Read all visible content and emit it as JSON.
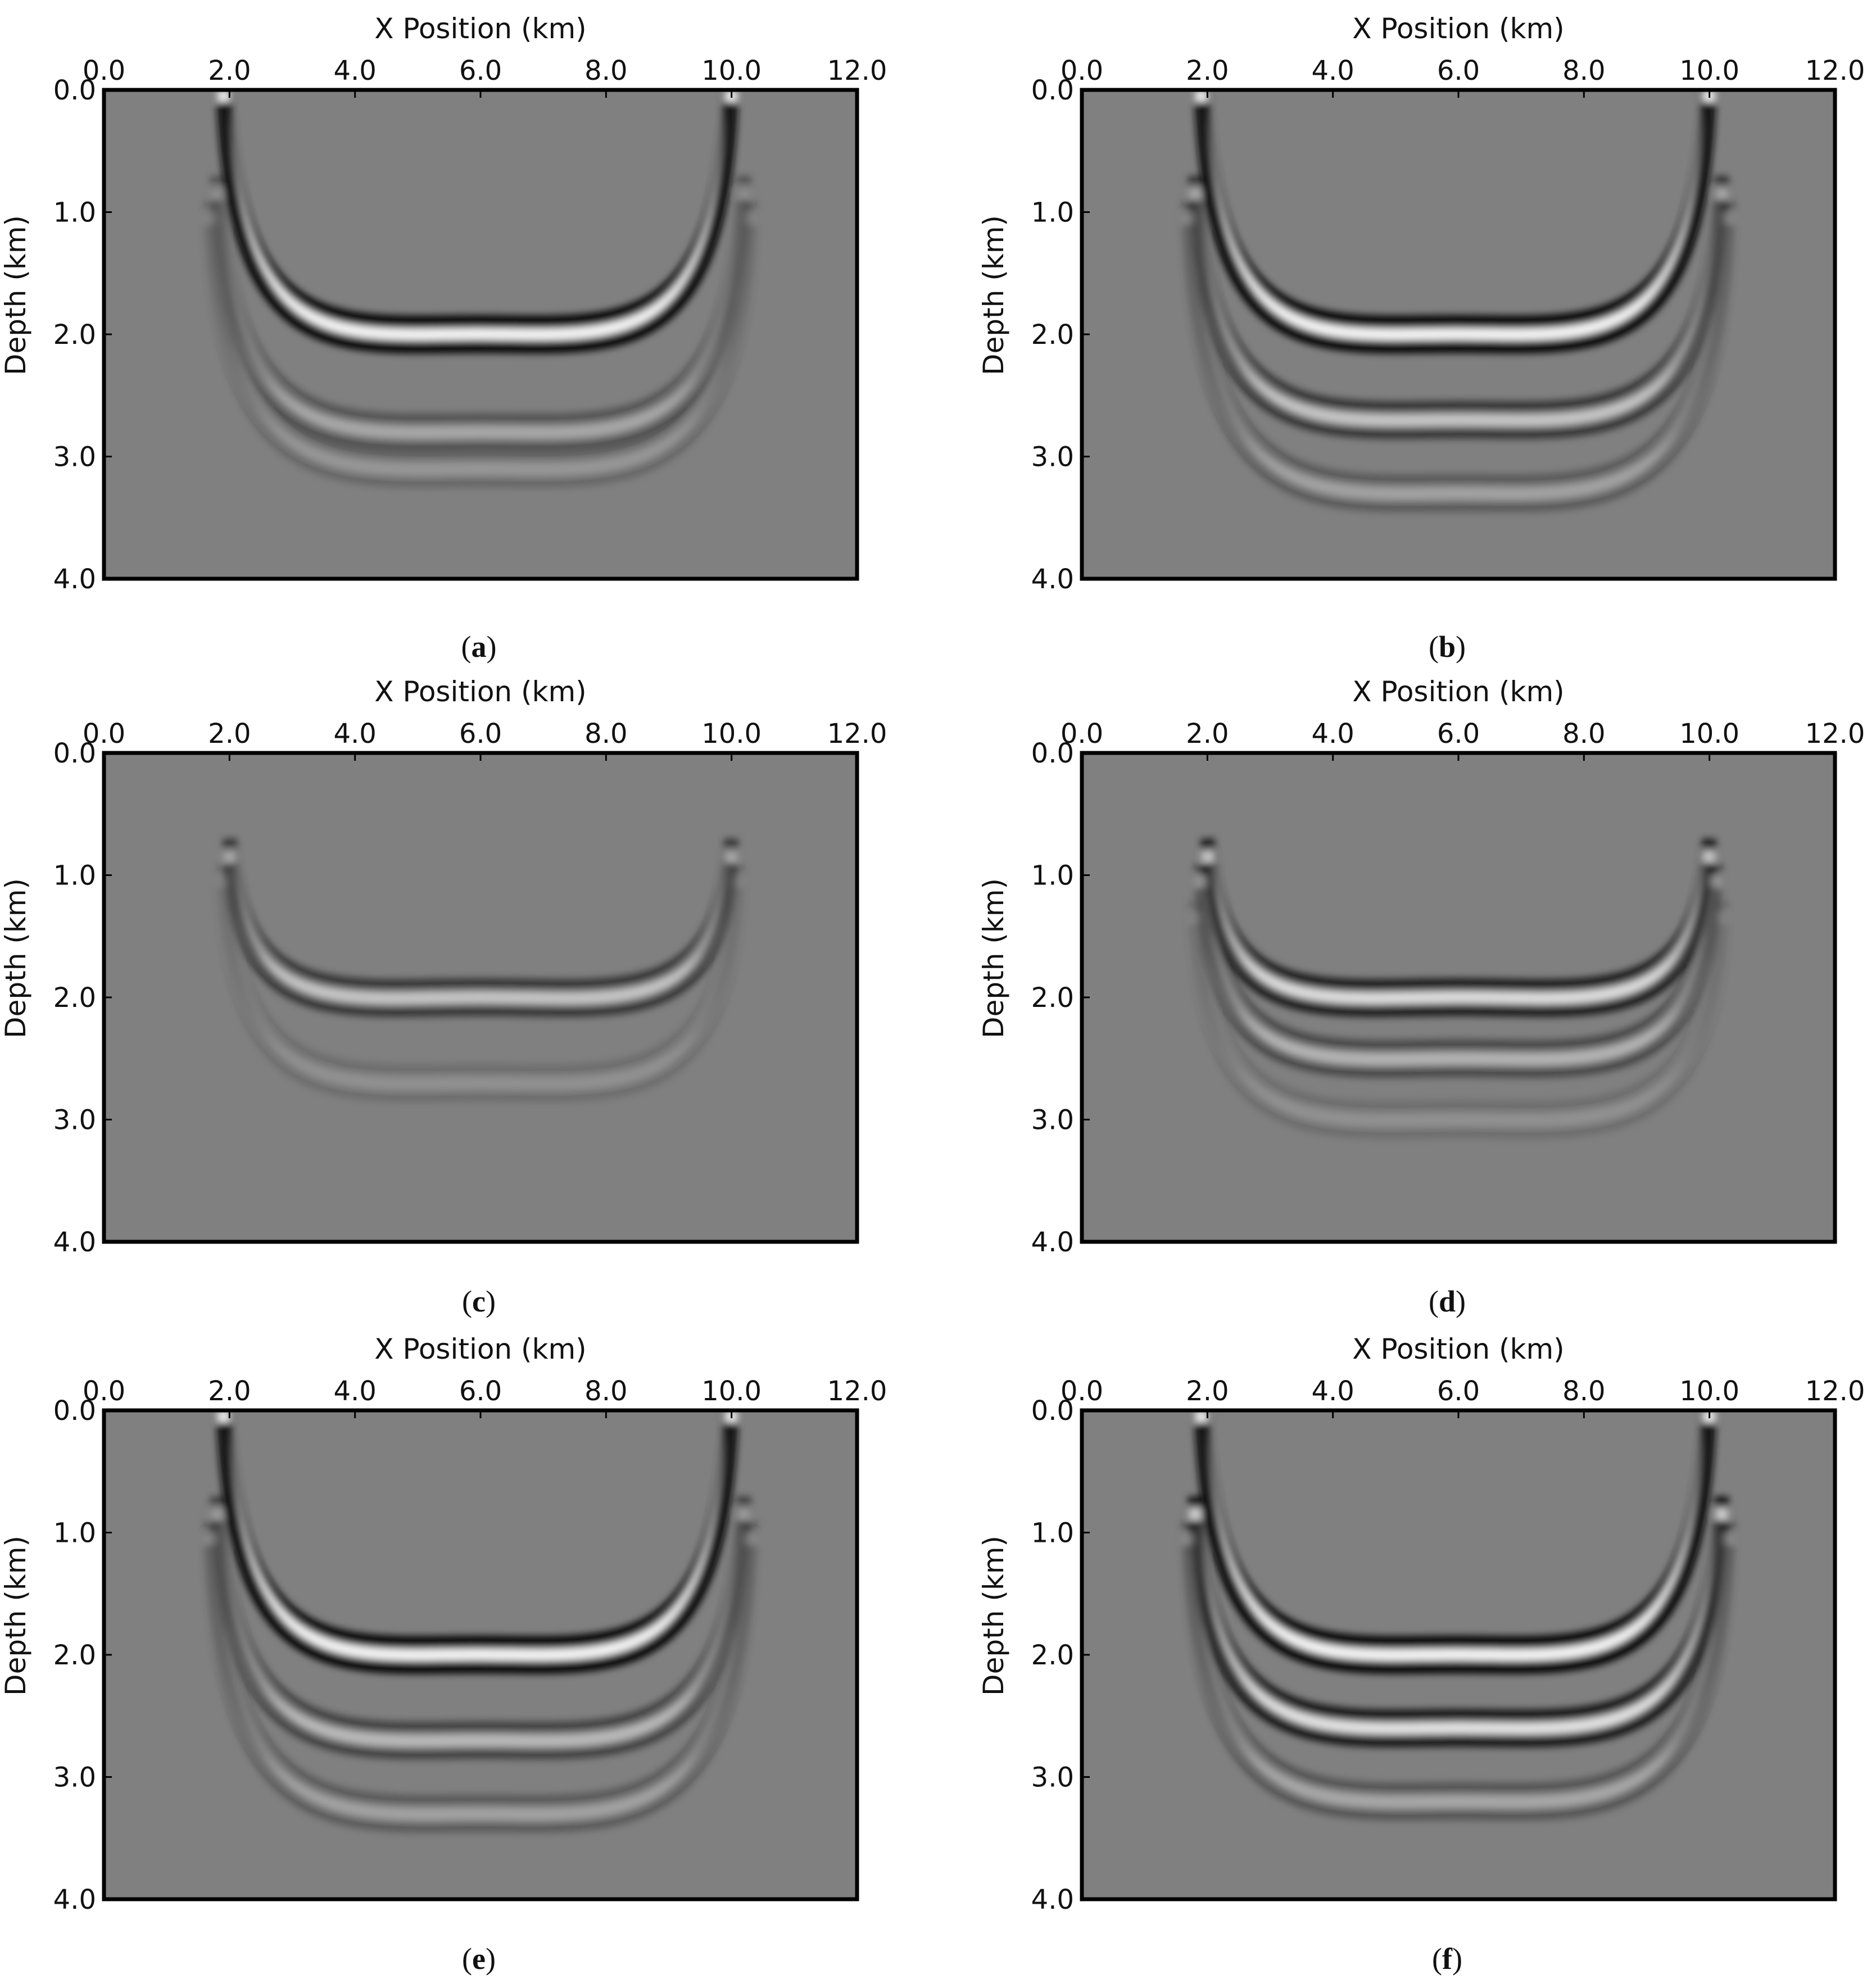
{
  "figure": {
    "background": "#ffffff",
    "field_gray": "#808080"
  },
  "chart_data": [
    {
      "type": "heatmap",
      "panel_label": "a",
      "xlabel": "X Position (km)",
      "ylabel": "Depth (km)",
      "xlim": [
        0.0,
        12.0
      ],
      "ylim": [
        4.0,
        0.0
      ],
      "x_ticks": [
        "0.0",
        "2.0",
        "4.0",
        "6.0",
        "8.0",
        "10.0",
        "12.0"
      ],
      "y_ticks": [
        "0.0",
        "1.0",
        "2.0",
        "3.0",
        "4.0"
      ],
      "colormap": "gray",
      "wavefronts": [
        {
          "x_left": 1.9,
          "x_right": 10.0,
          "bottom_depth": 2.0,
          "top_depth": 0.0,
          "strength": 1.0
        },
        {
          "x_left": 1.8,
          "x_right": 10.2,
          "bottom_depth": 2.8,
          "top_depth": 0.8,
          "strength": 0.35
        },
        {
          "x_left": 1.7,
          "x_right": 10.3,
          "bottom_depth": 3.1,
          "top_depth": 1.0,
          "strength": 0.2
        }
      ]
    },
    {
      "type": "heatmap",
      "panel_label": "b",
      "xlabel": "X Position (km)",
      "ylabel": "Depth (km)",
      "xlim": [
        0.0,
        12.0
      ],
      "ylim": [
        4.0,
        0.0
      ],
      "x_ticks": [
        "0.0",
        "2.0",
        "4.0",
        "6.0",
        "8.0",
        "10.0",
        "12.0"
      ],
      "y_ticks": [
        "0.0",
        "1.0",
        "2.0",
        "3.0",
        "4.0"
      ],
      "colormap": "gray",
      "wavefronts": [
        {
          "x_left": 1.9,
          "x_right": 10.0,
          "bottom_depth": 2.0,
          "top_depth": 0.0,
          "strength": 1.0
        },
        {
          "x_left": 1.8,
          "x_right": 10.2,
          "bottom_depth": 2.7,
          "top_depth": 0.8,
          "strength": 0.6
        },
        {
          "x_left": 1.7,
          "x_right": 10.3,
          "bottom_depth": 3.3,
          "top_depth": 1.0,
          "strength": 0.3
        }
      ]
    },
    {
      "type": "heatmap",
      "panel_label": "c",
      "xlabel": "X Position (km)",
      "ylabel": "Depth (km)",
      "xlim": [
        0.0,
        12.0
      ],
      "ylim": [
        4.0,
        0.0
      ],
      "x_ticks": [
        "0.0",
        "2.0",
        "4.0",
        "6.0",
        "8.0",
        "10.0",
        "12.0"
      ],
      "y_ticks": [
        "0.0",
        "1.0",
        "2.0",
        "3.0",
        "4.0"
      ],
      "colormap": "gray",
      "wavefronts": [
        {
          "x_left": 2.0,
          "x_right": 10.0,
          "bottom_depth": 2.0,
          "top_depth": 0.8,
          "strength": 0.6
        },
        {
          "x_left": 1.9,
          "x_right": 10.1,
          "bottom_depth": 2.7,
          "top_depth": 1.0,
          "strength": 0.15
        }
      ]
    },
    {
      "type": "heatmap",
      "panel_label": "d",
      "xlabel": "X Position (km)",
      "ylabel": "Depth (km)",
      "xlim": [
        0.0,
        12.0
      ],
      "ylim": [
        4.0,
        0.0
      ],
      "x_ticks": [
        "0.0",
        "2.0",
        "4.0",
        "6.0",
        "8.0",
        "10.0",
        "12.0"
      ],
      "y_ticks": [
        "0.0",
        "1.0",
        "2.0",
        "3.0",
        "4.0"
      ],
      "colormap": "gray",
      "wavefronts": [
        {
          "x_left": 2.0,
          "x_right": 10.0,
          "bottom_depth": 2.0,
          "top_depth": 0.8,
          "strength": 0.8
        },
        {
          "x_left": 1.9,
          "x_right": 10.1,
          "bottom_depth": 2.5,
          "top_depth": 1.0,
          "strength": 0.45
        },
        {
          "x_left": 1.8,
          "x_right": 10.2,
          "bottom_depth": 3.0,
          "top_depth": 1.3,
          "strength": 0.15
        }
      ]
    },
    {
      "type": "heatmap",
      "panel_label": "e",
      "xlabel": "X Position (km)",
      "ylabel": "Depth (km)",
      "xlim": [
        0.0,
        12.0
      ],
      "ylim": [
        4.0,
        0.0
      ],
      "x_ticks": [
        "0.0",
        "2.0",
        "4.0",
        "6.0",
        "8.0",
        "10.0",
        "12.0"
      ],
      "y_ticks": [
        "0.0",
        "1.0",
        "2.0",
        "3.0",
        "4.0"
      ],
      "colormap": "gray",
      "wavefronts": [
        {
          "x_left": 1.9,
          "x_right": 10.0,
          "bottom_depth": 2.0,
          "top_depth": 0.0,
          "strength": 1.0
        },
        {
          "x_left": 1.8,
          "x_right": 10.2,
          "bottom_depth": 2.7,
          "top_depth": 0.8,
          "strength": 0.5
        },
        {
          "x_left": 1.7,
          "x_right": 10.3,
          "bottom_depth": 3.3,
          "top_depth": 1.0,
          "strength": 0.3
        }
      ]
    },
    {
      "type": "heatmap",
      "panel_label": "f",
      "xlabel": "X Position (km)",
      "ylabel": "Depth (km)",
      "xlim": [
        0.0,
        12.0
      ],
      "ylim": [
        4.0,
        0.0
      ],
      "x_ticks": [
        "0.0",
        "2.0",
        "4.0",
        "6.0",
        "8.0",
        "10.0",
        "12.0"
      ],
      "y_ticks": [
        "0.0",
        "1.0",
        "2.0",
        "3.0",
        "4.0"
      ],
      "colormap": "gray",
      "wavefronts": [
        {
          "x_left": 1.9,
          "x_right": 10.0,
          "bottom_depth": 2.0,
          "top_depth": 0.0,
          "strength": 1.0
        },
        {
          "x_left": 1.8,
          "x_right": 10.2,
          "bottom_depth": 2.6,
          "top_depth": 0.8,
          "strength": 0.85
        },
        {
          "x_left": 1.7,
          "x_right": 10.3,
          "bottom_depth": 3.2,
          "top_depth": 1.0,
          "strength": 0.35
        }
      ]
    }
  ]
}
